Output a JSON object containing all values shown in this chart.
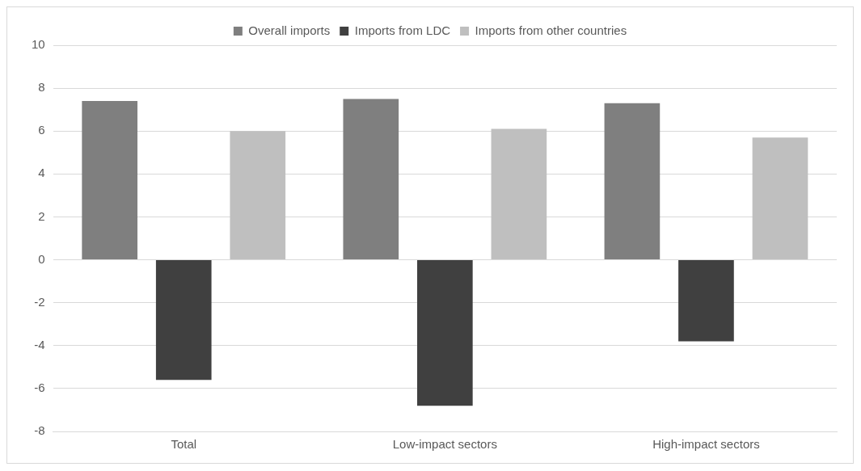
{
  "chart_data": {
    "type": "bar",
    "categories": [
      "Total",
      "Low-impact sectors",
      "High-impact sectors"
    ],
    "series": [
      {
        "name": "Overall imports",
        "color": "#7f7f7f",
        "values": [
          7.4,
          7.5,
          7.3
        ]
      },
      {
        "name": "Imports from LDC",
        "color": "#404040",
        "values": [
          -5.6,
          -6.8,
          -3.8
        ]
      },
      {
        "name": "Imports from other countries",
        "color": "#bfbfbf",
        "values": [
          6.0,
          6.1,
          5.7
        ]
      }
    ],
    "ylim": [
      -8,
      10
    ],
    "yticks": [
      -8,
      -6,
      -4,
      -2,
      0,
      2,
      4,
      6,
      8,
      10
    ],
    "grid": "y",
    "legend": "top"
  }
}
